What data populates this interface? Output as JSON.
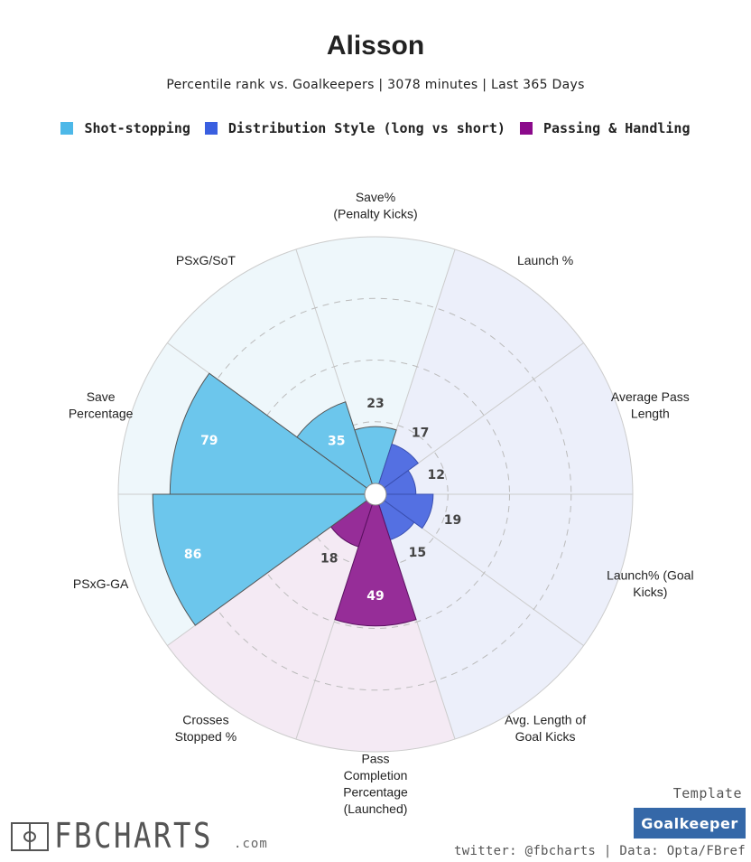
{
  "header": {
    "title": "Alisson",
    "subtitle": "Percentile rank vs. Goalkeepers | 3078 minutes | Last 365 Days"
  },
  "legend": [
    {
      "label": "Shot-stopping",
      "color": "#4db8e8"
    },
    {
      "label": "Distribution Style (long vs short)",
      "color": "#3a5fe0"
    },
    {
      "label": "Passing & Handling",
      "color": "#8b0a8b"
    }
  ],
  "chart_data": {
    "type": "polar_bar",
    "categories": [
      "Save%\n(Penalty Kicks)",
      "Launch %",
      "Average Pass\nLength",
      "Launch% (Goal\nKicks)",
      "Avg. Length of\nGoal Kicks",
      "Pass\nCompletion\nPercentage\n(Launched)",
      "Crosses\nStopped %",
      "PSxG-GA",
      "Save\nPercentage",
      "PSxG/SoT"
    ],
    "values": [
      23,
      17,
      12,
      19,
      15,
      49,
      18,
      86,
      79,
      35
    ],
    "groups": [
      "Shot-stopping",
      "Distribution Style (long vs short)",
      "Distribution Style (long vs short)",
      "Distribution Style (long vs short)",
      "Distribution Style (long vs short)",
      "Passing & Handling",
      "Passing & Handling",
      "Shot-stopping",
      "Shot-stopping",
      "Shot-stopping"
    ],
    "group_colors": {
      "Shot-stopping": {
        "fill": "#6cc6ec",
        "bg": "#eef7fb",
        "stroke": "#555555"
      },
      "Distribution Style (long vs short)": {
        "fill": "#5470e2",
        "bg": "#eceffa",
        "stroke": "#3a4fb0"
      },
      "Passing & Handling": {
        "fill": "#962d98",
        "bg": "#f4eaf4",
        "stroke": "#5a1060"
      }
    },
    "value_label_colors": {
      "inside": "#ffffff",
      "outside": "#444444"
    },
    "rlim": [
      0,
      100
    ],
    "grid_rings": [
      25,
      50,
      75
    ],
    "start_direction": "top",
    "rotation": "clockwise"
  },
  "footer": {
    "template_label": "Template",
    "template_value": "Goalkeeper",
    "credit": "twitter: @fbcharts | Data: Opta/FBref",
    "brand_name": "FBCHARTS",
    "brand_suffix": ".com"
  }
}
